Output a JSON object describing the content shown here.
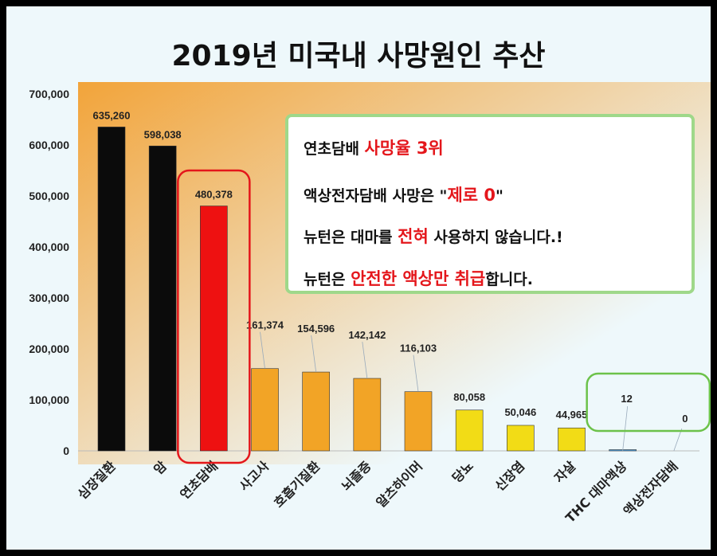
{
  "chart_data": {
    "type": "bar",
    "title": "2019년 미국내 사망원인 추산",
    "categories": [
      "심장질환",
      "암",
      "연초담배",
      "사고사",
      "호흡기질환",
      "뇌졸증",
      "알츠하이머",
      "당뇨",
      "신장염",
      "자살",
      "THC 대마액상",
      "액상전자담배"
    ],
    "values": [
      635260,
      598038,
      480378,
      161374,
      154596,
      142142,
      116103,
      80058,
      50046,
      44965,
      12,
      0
    ],
    "value_labels": [
      "635,260",
      "598,038",
      "480,378",
      "161,374",
      "154,596",
      "142,142",
      "116,103",
      "80,058",
      "50,046",
      "44,965",
      "12",
      "0"
    ],
    "bar_colors": [
      "#0b0b0b",
      "#0b0b0b",
      "#ee1111",
      "#f2a426",
      "#f2a426",
      "#f2a426",
      "#f2a426",
      "#f2dc16",
      "#f2dc16",
      "#f2dc16",
      "#4da6e8",
      "#4da6e8"
    ],
    "label_colors": [
      "#222222",
      "#222222",
      "#222222",
      "#222222",
      "#222222",
      "#222222",
      "#222222",
      "#222222",
      "#222222",
      "#222222",
      "#e4161b",
      "#e4161b"
    ],
    "ylim": [
      0,
      700000
    ],
    "yticks": [
      "0",
      "100,000",
      "200,000",
      "300,000",
      "400,000",
      "500,000",
      "600,000",
      "700,000"
    ],
    "grid": false,
    "highlight_boxes": [
      {
        "categories": [
          "연초담배"
        ],
        "color": "#e4161b"
      },
      {
        "categories": [
          "THC 대마액상",
          "액상전자담배"
        ],
        "color": "#6cc24a"
      }
    ]
  },
  "annotation": {
    "border_color": "#9fd88a",
    "lines": [
      [
        {
          "t": "연초담배 ",
          "c": "#111111"
        },
        {
          "t": "사망율 3위",
          "c": "#e4161b"
        }
      ],
      [
        {
          "t": "액상전자담배 사망은  \"",
          "c": "#111111"
        },
        {
          "t": "제로 0",
          "c": "#e4161b"
        },
        {
          "t": "\"",
          "c": "#111111"
        }
      ],
      [
        {
          "t": "뉴턴은 대마를 ",
          "c": "#111111"
        },
        {
          "t": "전혀",
          "c": "#e4161b"
        },
        {
          "t": " 사용하지 않습니다.!",
          "c": "#111111"
        }
      ],
      [
        {
          "t": "뉴턴은 ",
          "c": "#111111"
        },
        {
          "t": "안전한 액상만 취급",
          "c": "#e4161b"
        },
        {
          "t": "합니다.",
          "c": "#111111"
        }
      ]
    ]
  },
  "colors": {
    "background": "#eef8fb",
    "gradient_start": "#f2a43a",
    "gradient_end": "#eef8fb",
    "frame": "#000000"
  }
}
